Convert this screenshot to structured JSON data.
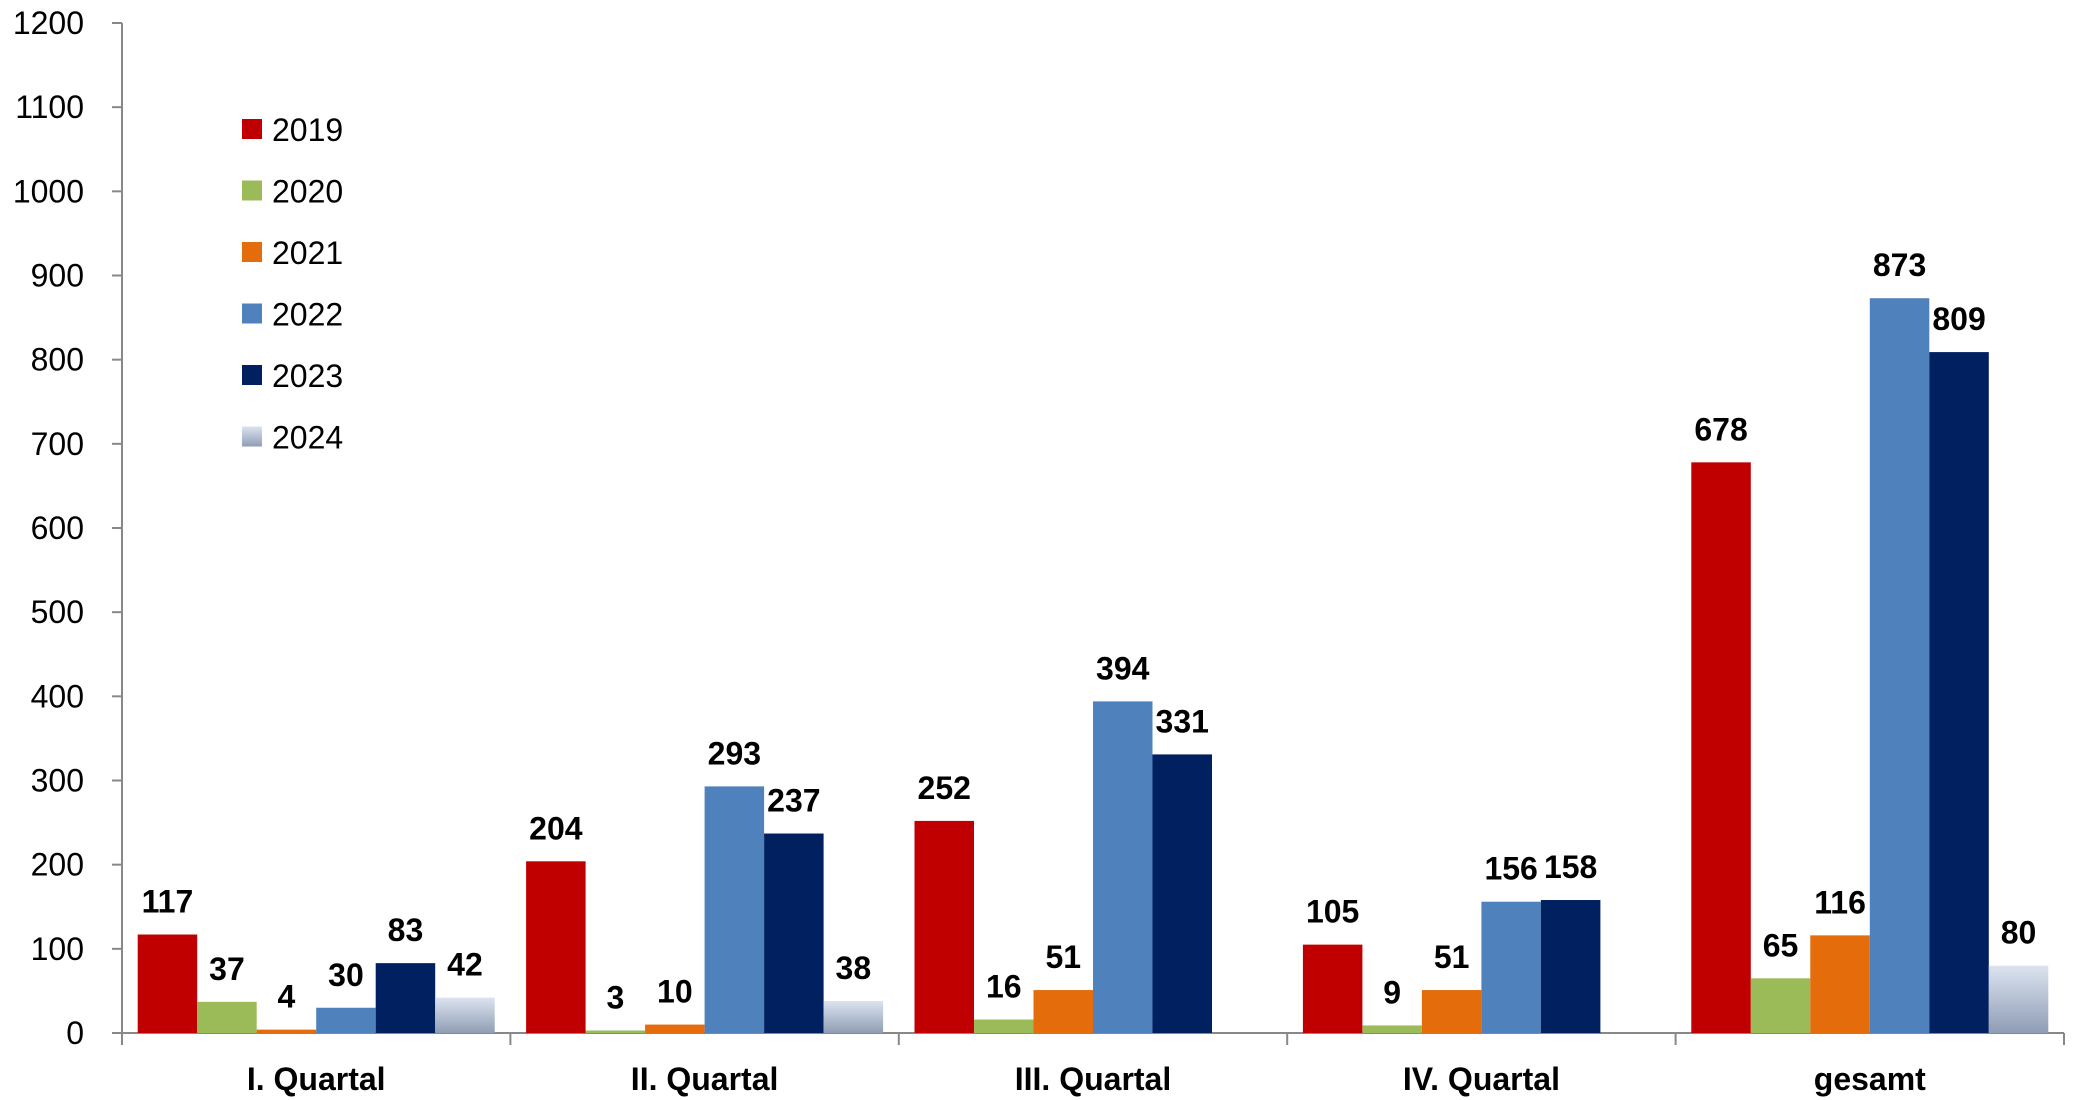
{
  "chart_data": {
    "type": "bar",
    "title": "",
    "xlabel": "",
    "ylabel": "",
    "ylim": [
      0,
      1200
    ],
    "yticks": [
      0,
      100,
      200,
      300,
      400,
      500,
      600,
      700,
      800,
      900,
      1000,
      1100,
      1200
    ],
    "grid": false,
    "legend_position": "top-left",
    "categories": [
      "I. Quartal",
      "II. Quartal",
      "III. Quartal",
      "IV. Quartal",
      "gesamt"
    ],
    "series": [
      {
        "name": "2019",
        "color": "#C00000",
        "values": [
          117,
          204,
          252,
          105,
          678
        ],
        "labels": [
          "117",
          "204",
          "252",
          "105",
          "678"
        ]
      },
      {
        "name": "2020",
        "color": "#9BBB59",
        "values": [
          37,
          3,
          16,
          9,
          65
        ],
        "labels": [
          "37",
          "3",
          "16",
          "9",
          "65"
        ]
      },
      {
        "name": "2021",
        "color": "#E46C0A",
        "values": [
          4,
          10,
          51,
          51,
          116
        ],
        "labels": [
          "4",
          "10",
          "51",
          "51",
          "116"
        ]
      },
      {
        "name": "2022",
        "color": "#4F81BD",
        "values": [
          30,
          293,
          394,
          156,
          873
        ],
        "labels": [
          "30",
          "293",
          "394",
          "156",
          "873"
        ]
      },
      {
        "name": "2023",
        "color": "#002060",
        "values": [
          83,
          237,
          331,
          158,
          809
        ],
        "labels": [
          "83",
          "237",
          "331",
          "158",
          "809"
        ]
      },
      {
        "name": "2024",
        "color": "#C9D3E6",
        "values": [
          42,
          38,
          null,
          null,
          80
        ],
        "labels": [
          "42",
          "38",
          null,
          null,
          "80"
        ]
      }
    ]
  }
}
